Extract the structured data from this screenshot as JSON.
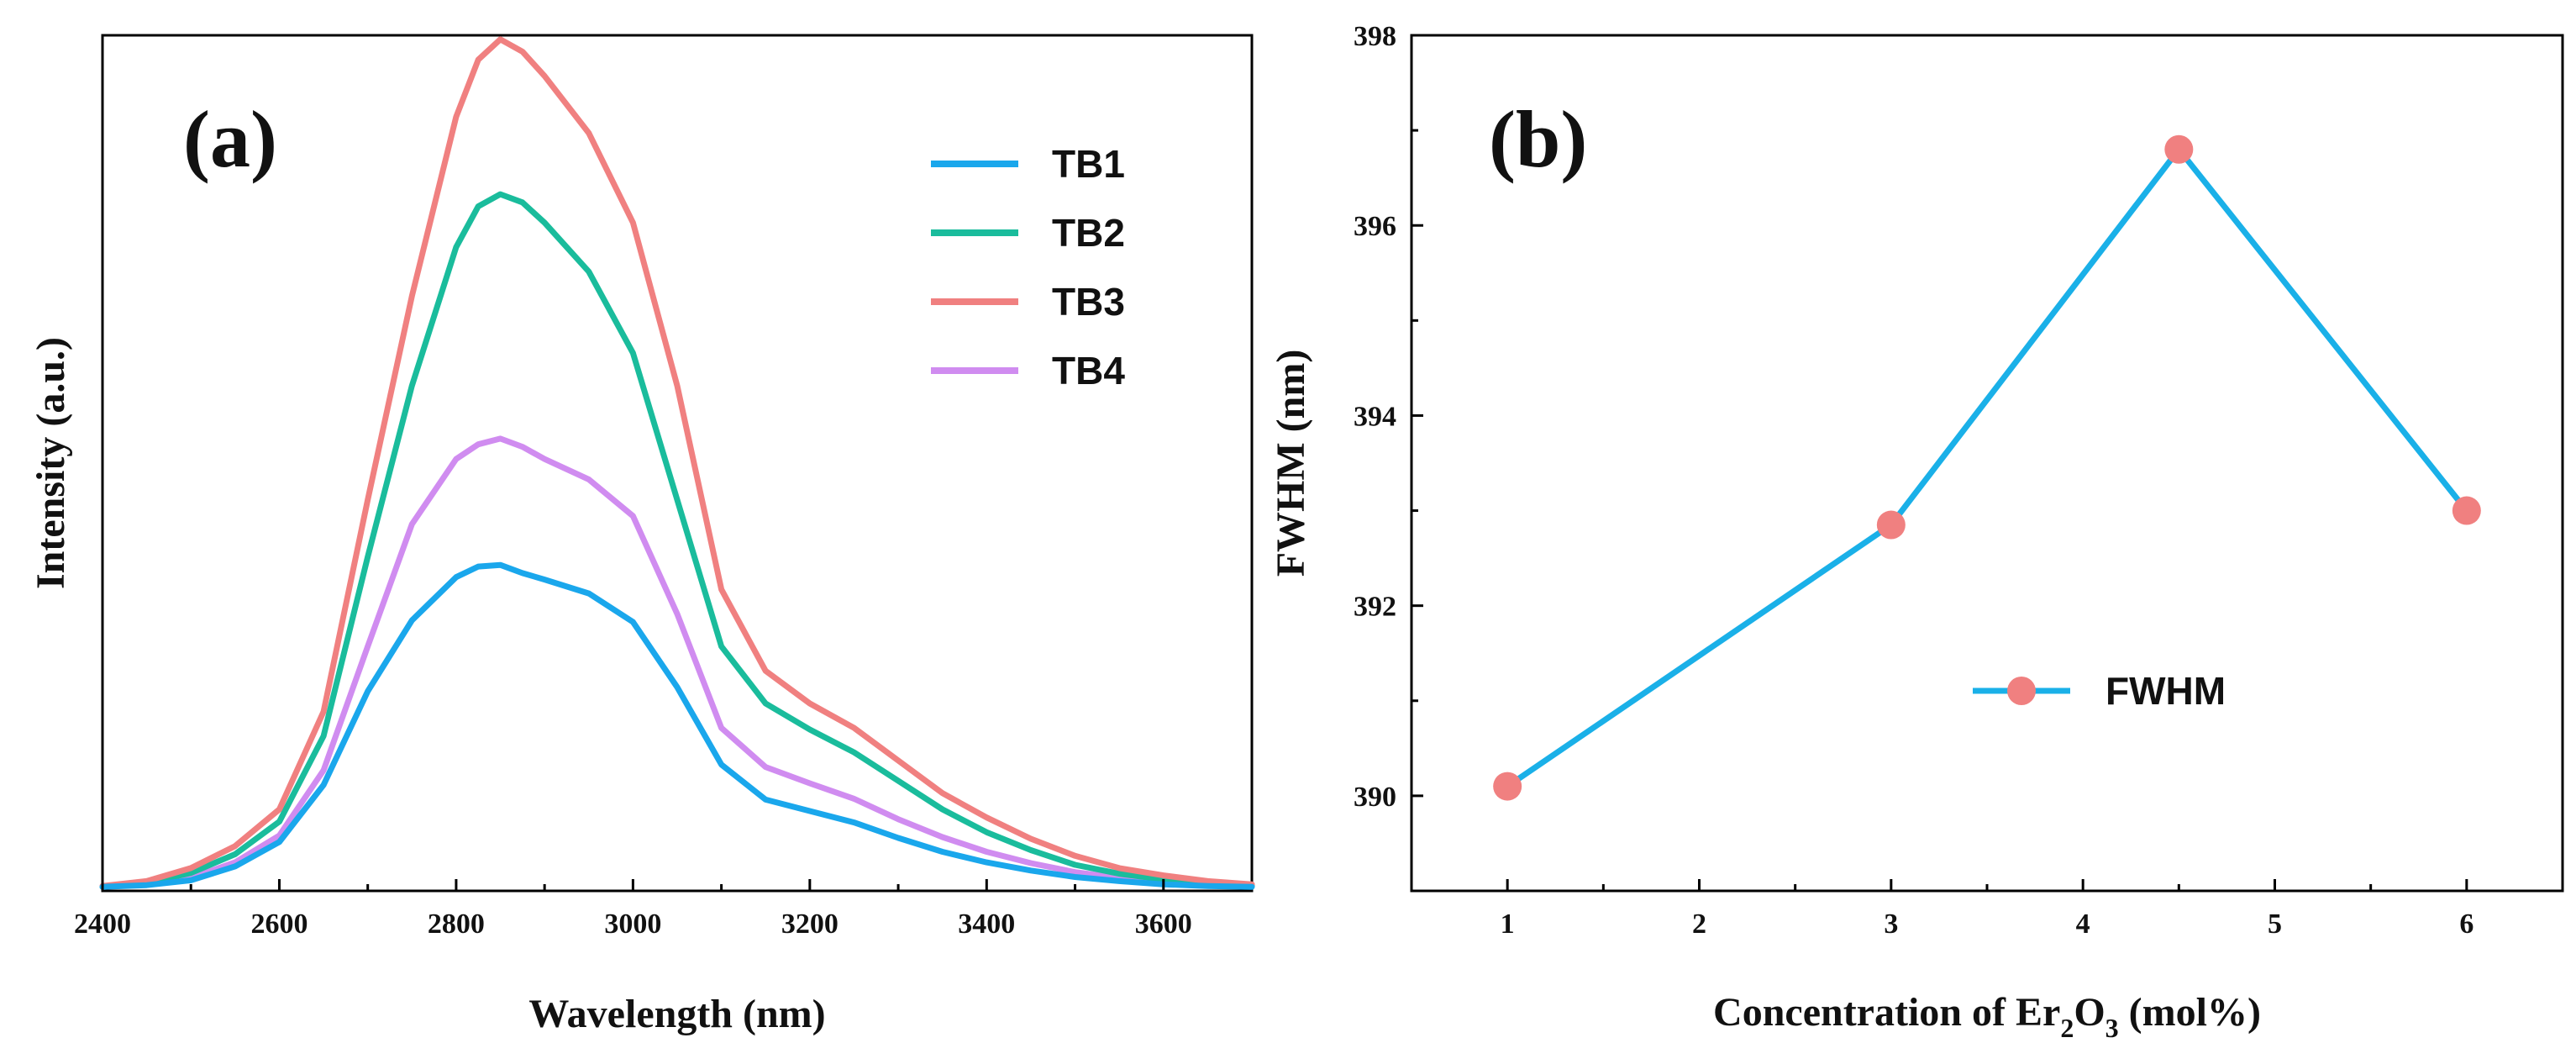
{
  "chart_data": [
    {
      "panel_label": "(a)",
      "type": "line",
      "title": "",
      "xlabel": "Wavelength (nm)",
      "ylabel": "Intensity (a.u.)",
      "xlim": [
        2400,
        3700
      ],
      "ylim": [
        0,
        1.05
      ],
      "xticks": [
        "2400",
        "2600",
        "2800",
        "3000",
        "3200",
        "3400",
        "3600"
      ],
      "grid": false,
      "legend_position": "top-right",
      "x": [
        2400,
        2450,
        2500,
        2550,
        2600,
        2650,
        2700,
        2750,
        2800,
        2825,
        2850,
        2875,
        2900,
        2950,
        3000,
        3050,
        3100,
        3150,
        3200,
        3250,
        3300,
        3350,
        3400,
        3450,
        3500,
        3550,
        3600,
        3650,
        3700
      ],
      "series": [
        {
          "name": "TB1",
          "color": "#1aa7ec",
          "values": [
            0.005,
            0.007,
            0.013,
            0.03,
            0.06,
            0.13,
            0.245,
            0.332,
            0.385,
            0.398,
            0.4,
            0.39,
            0.382,
            0.365,
            0.33,
            0.25,
            0.155,
            0.112,
            0.098,
            0.084,
            0.065,
            0.048,
            0.035,
            0.025,
            0.017,
            0.012,
            0.008,
            0.006,
            0.005
          ]
        },
        {
          "name": "TB2",
          "color": "#1abc9c",
          "values": [
            0.005,
            0.01,
            0.022,
            0.045,
            0.085,
            0.19,
            0.41,
            0.62,
            0.79,
            0.84,
            0.855,
            0.845,
            0.82,
            0.76,
            0.66,
            0.48,
            0.3,
            0.23,
            0.198,
            0.17,
            0.135,
            0.1,
            0.072,
            0.05,
            0.032,
            0.021,
            0.014,
            0.009,
            0.006
          ]
        },
        {
          "name": "TB3",
          "color": "#f08080",
          "values": [
            0.006,
            0.012,
            0.028,
            0.055,
            0.1,
            0.22,
            0.48,
            0.73,
            0.95,
            1.02,
            1.045,
            1.03,
            1.0,
            0.93,
            0.82,
            0.62,
            0.37,
            0.27,
            0.23,
            0.2,
            0.16,
            0.12,
            0.09,
            0.064,
            0.043,
            0.028,
            0.019,
            0.012,
            0.008
          ]
        },
        {
          "name": "TB4",
          "color": "#d08cf0",
          "values": [
            0.005,
            0.008,
            0.016,
            0.035,
            0.068,
            0.148,
            0.3,
            0.45,
            0.53,
            0.548,
            0.555,
            0.545,
            0.53,
            0.505,
            0.46,
            0.34,
            0.2,
            0.152,
            0.132,
            0.113,
            0.088,
            0.066,
            0.048,
            0.034,
            0.023,
            0.016,
            0.011,
            0.008,
            0.006
          ]
        }
      ]
    },
    {
      "panel_label": "(b)",
      "type": "line",
      "title": "",
      "xlabel_main": "Concentration of Er",
      "xlabel_sub1": "2",
      "xlabel_mid": "O",
      "xlabel_sub2": "3",
      "xlabel_end": " (mol%)",
      "ylabel": "FWHM (nm)",
      "xlim": [
        0.5,
        6.5
      ],
      "ylim": [
        389,
        398
      ],
      "xticks": [
        "1",
        "2",
        "3",
        "4",
        "5",
        "6"
      ],
      "yticks": [
        "390",
        "392",
        "394",
        "396",
        "398"
      ],
      "grid": false,
      "legend_position": "center-right",
      "series": [
        {
          "name": "FWHM",
          "line_color": "#1ab0e8",
          "marker_color": "#f08080",
          "x": [
            1,
            3,
            4.5,
            6
          ],
          "values": [
            390.1,
            392.85,
            396.8,
            393.0
          ]
        }
      ]
    }
  ]
}
